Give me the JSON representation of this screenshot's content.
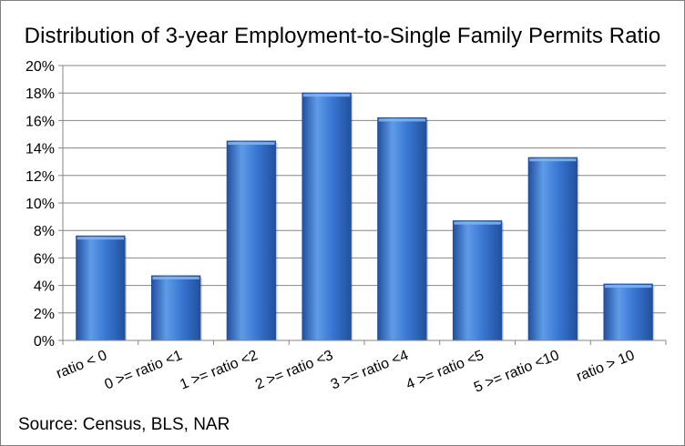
{
  "chart_data": {
    "type": "bar",
    "title": "Distribution of 3-year Employment-to-Single Family Permits Ratio",
    "categories": [
      "ratio < 0",
      "0 >= ratio <1",
      "1 >= ratio <2",
      "2 >= ratio <3",
      "3 >= ratio <4",
      "4 >= ratio <5",
      "5 >= ratio <10",
      "ratio > 10"
    ],
    "values": [
      7.6,
      4.7,
      14.5,
      18.0,
      16.2,
      8.7,
      13.3,
      4.1
    ],
    "value_unit": "%",
    "ylim": [
      0,
      20
    ],
    "yticks": [
      0,
      2,
      4,
      6,
      8,
      10,
      12,
      14,
      16,
      18,
      20
    ],
    "ytick_labels": [
      "0%",
      "2%",
      "4%",
      "6%",
      "8%",
      "10%",
      "12%",
      "14%",
      "16%",
      "18%",
      "20%"
    ],
    "xlabel": "",
    "ylabel": "",
    "grid": true,
    "legend": "none",
    "colors": {
      "bar_light": "#5f9be8",
      "bar_mid": "#3a78d4",
      "bar_dark": "#22509e",
      "bar_top": "#7fb2f0",
      "gridline": "#868686",
      "axis": "#868686",
      "plot_background": "#ffffff"
    }
  },
  "source_note": "Source: Census, BLS, NAR"
}
